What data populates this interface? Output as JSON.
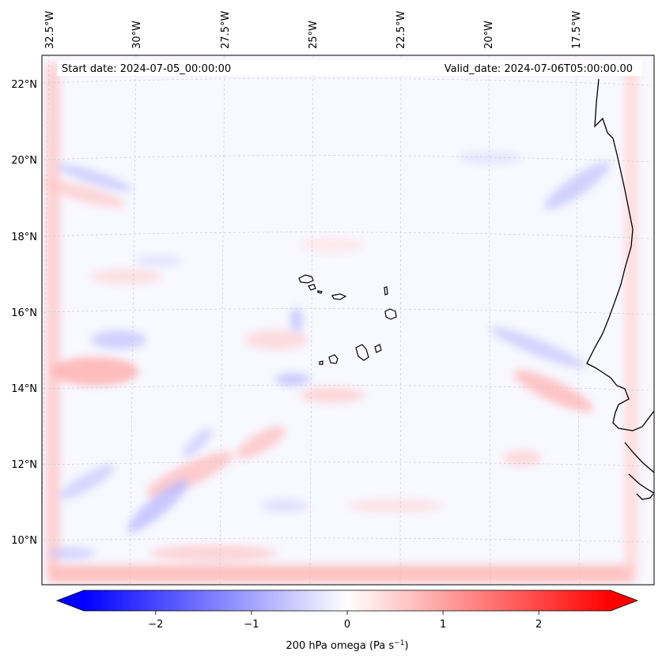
{
  "map": {
    "start_date": "Start date: 2024-07-05_00:00:00",
    "valid_date": "Valid_date: 2024-07-06T05:00:00.00",
    "lon_labels": [
      "32.5°W",
      "30°W",
      "27.5°W",
      "25°W",
      "22.5°W",
      "20°W",
      "17.5°W"
    ],
    "lat_labels": [
      "22°N",
      "20°N",
      "18°N",
      "16°N",
      "14°N",
      "12°N",
      "10°N"
    ],
    "extent": {
      "lon_min": -33,
      "lon_max": -15.3,
      "lat_min": 8.8,
      "lat_max": 22.7
    }
  },
  "colorbar": {
    "label": "200 hPa omega (Pa s",
    "label_sup": "−1",
    "label_close": ")",
    "vmin": -2.75,
    "vmax": 2.75,
    "ticks": [
      {
        "value": -2,
        "label": "−2"
      },
      {
        "value": -1,
        "label": "−1"
      },
      {
        "value": 0,
        "label": "0"
      },
      {
        "value": 1,
        "label": "1"
      },
      {
        "value": 2,
        "label": "2"
      }
    ],
    "low_color": "#0000ff",
    "mid_color": "#ffffff",
    "high_color": "#ff0000"
  }
}
